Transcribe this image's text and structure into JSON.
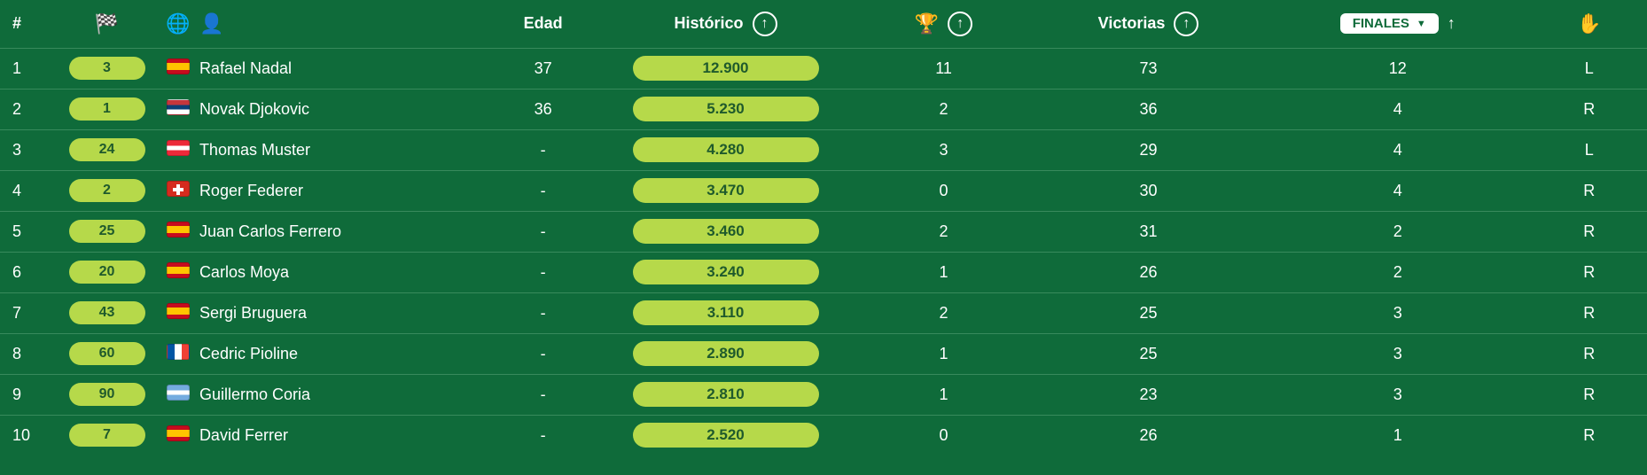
{
  "colors": {
    "page_bg": "#0f6b3a",
    "row_border": "#388a5c",
    "pill_bg": "#b6d94a",
    "pill_text": "#1f5a2c",
    "text": "#ffffff",
    "dropdown_bg": "#ffffff",
    "dropdown_text": "#0f6b3a"
  },
  "headers": {
    "num": "#",
    "rank_icon": "🏁",
    "globe_icon": "🌐",
    "player_icon": "👤",
    "edad": "Edad",
    "historico": "Histórico",
    "trophy_icon": "🏆",
    "victorias": "Victorias",
    "finales_dropdown": "FINALES",
    "hand_icon": "✋"
  },
  "rows": [
    {
      "pos": "1",
      "rank": "3",
      "flag": "es",
      "player": "Rafael Nadal",
      "edad": "37",
      "historico": "12.900",
      "trophies": "11",
      "victorias": "73",
      "finales": "12",
      "hand": "L"
    },
    {
      "pos": "2",
      "rank": "1",
      "flag": "rs",
      "player": "Novak Djokovic",
      "edad": "36",
      "historico": "5.230",
      "trophies": "2",
      "victorias": "36",
      "finales": "4",
      "hand": "R"
    },
    {
      "pos": "3",
      "rank": "24",
      "flag": "at",
      "player": "Thomas Muster",
      "edad": "-",
      "historico": "4.280",
      "trophies": "3",
      "victorias": "29",
      "finales": "4",
      "hand": "L"
    },
    {
      "pos": "4",
      "rank": "2",
      "flag": "ch",
      "player": "Roger Federer",
      "edad": "-",
      "historico": "3.470",
      "trophies": "0",
      "victorias": "30",
      "finales": "4",
      "hand": "R"
    },
    {
      "pos": "5",
      "rank": "25",
      "flag": "es",
      "player": "Juan Carlos Ferrero",
      "edad": "-",
      "historico": "3.460",
      "trophies": "2",
      "victorias": "31",
      "finales": "2",
      "hand": "R"
    },
    {
      "pos": "6",
      "rank": "20",
      "flag": "es",
      "player": "Carlos Moya",
      "edad": "-",
      "historico": "3.240",
      "trophies": "1",
      "victorias": "26",
      "finales": "2",
      "hand": "R"
    },
    {
      "pos": "7",
      "rank": "43",
      "flag": "es",
      "player": "Sergi Bruguera",
      "edad": "-",
      "historico": "3.110",
      "trophies": "2",
      "victorias": "25",
      "finales": "3",
      "hand": "R"
    },
    {
      "pos": "8",
      "rank": "60",
      "flag": "fr",
      "player": "Cedric Pioline",
      "edad": "-",
      "historico": "2.890",
      "trophies": "1",
      "victorias": "25",
      "finales": "3",
      "hand": "R"
    },
    {
      "pos": "9",
      "rank": "90",
      "flag": "ar",
      "player": "Guillermo Coria",
      "edad": "-",
      "historico": "2.810",
      "trophies": "1",
      "victorias": "23",
      "finales": "3",
      "hand": "R"
    },
    {
      "pos": "10",
      "rank": "7",
      "flag": "es",
      "player": "David Ferrer",
      "edad": "-",
      "historico": "2.520",
      "trophies": "0",
      "victorias": "26",
      "finales": "1",
      "hand": "R"
    }
  ]
}
